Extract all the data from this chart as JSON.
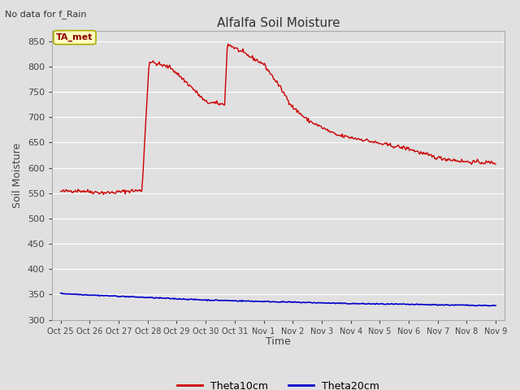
{
  "title": "Alfalfa Soil Moisture",
  "ylabel": "Soil Moisture",
  "xlabel": "Time",
  "top_left_text": "No data for f_Rain",
  "annotation_text": "TA_met",
  "annotation_color": "#8B0000",
  "annotation_bg": "#FFFFC0",
  "annotation_border": "#AAAA00",
  "ylim": [
    300,
    870
  ],
  "yticks": [
    300,
    350,
    400,
    450,
    500,
    550,
    600,
    650,
    700,
    750,
    800,
    850
  ],
  "background_color": "#E0E0E0",
  "plot_bg_color": "#E0E0E0",
  "grid_color": "#FFFFFF",
  "line1_color": "#CC0000",
  "line2_color": "#0000CC",
  "legend_labels": [
    "Theta10cm",
    "Theta20cm"
  ],
  "x_tick_labels": [
    "Oct 25",
    "Oct 26",
    "Oct 27",
    "Oct 28",
    "Oct 29",
    "Oct 30",
    "Oct 31",
    "Nov 1",
    "Nov 2",
    "Nov 3",
    "Nov 4",
    "Nov 5",
    "Nov 6",
    "Nov 7",
    "Nov 8",
    "Nov 9"
  ],
  "figsize": [
    6.4,
    4.8
  ],
  "dpi": 100
}
